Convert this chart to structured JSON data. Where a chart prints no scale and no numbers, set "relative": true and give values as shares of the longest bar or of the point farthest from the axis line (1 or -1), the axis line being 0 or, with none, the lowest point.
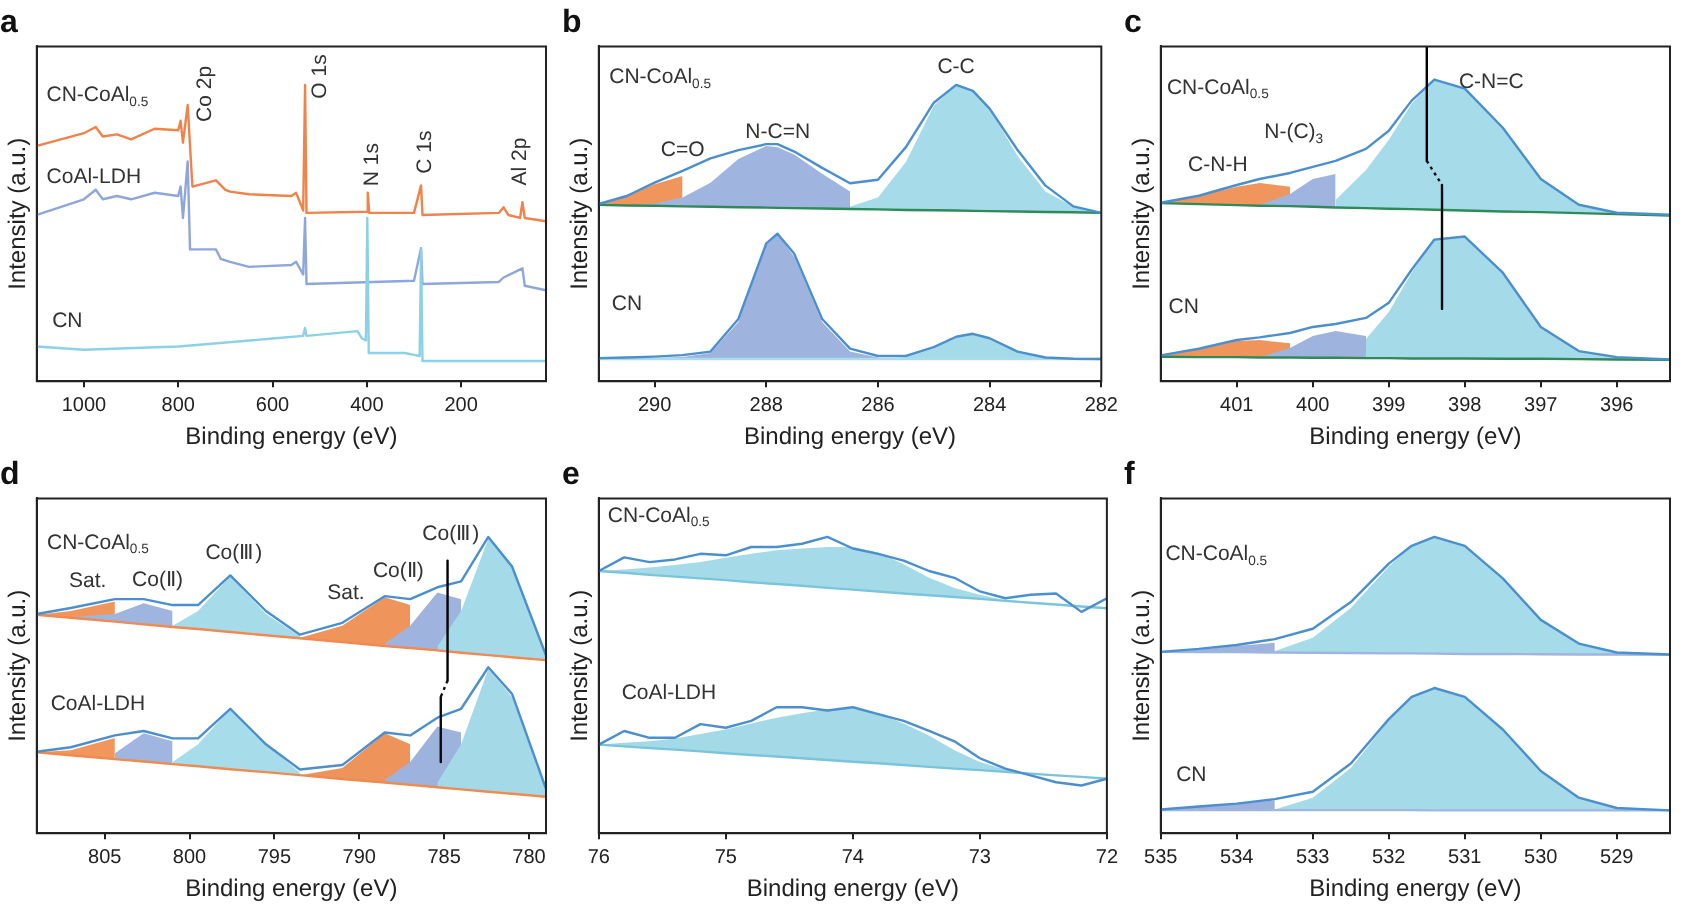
{
  "chart_data": [
    {
      "type": "line",
      "title": "a",
      "xlabel": "Binding energy (eV)",
      "ylabel": "Intensity (a.u.)",
      "relative": true,
      "xlim": [
        1100,
        20
      ],
      "xticks": [
        1000,
        800,
        600,
        400,
        200
      ],
      "annotations": [
        "CN-CoAl$_{0.5}$",
        "CoAl-LDH",
        "CN",
        "Co 2p",
        "O 1s",
        "N 1s",
        "C 1s",
        "Al 2p"
      ],
      "series": [
        {
          "color": "#f0834a",
          "x": [
            1100,
            1000,
            975,
            960,
            930,
            900,
            850,
            800,
            795,
            790,
            780,
            770,
            720,
            700,
            690,
            650,
            560,
            550,
            535,
            531,
            528,
            400,
            398,
            395,
            300,
            285,
            282,
            120,
            110,
            100,
            75,
            70,
            65,
            20
          ],
          "values": [
            0.794,
            0.837,
            0.858,
            0.826,
            0.833,
            0.816,
            0.852,
            0.847,
            0.879,
            0.805,
            0.932,
            0.657,
            0.678,
            0.646,
            0.64,
            0.631,
            0.625,
            0.636,
            0.576,
            1,
            0.568,
            0.572,
            0.636,
            0.568,
            0.568,
            0.661,
            0.561,
            0.568,
            0.587,
            0.561,
            0.551,
            0.604,
            0.551,
            0.54
          ]
        },
        {
          "color": "#8ea7db",
          "x": [
            1100,
            1000,
            975,
            960,
            930,
            900,
            850,
            800,
            795,
            790,
            780,
            775,
            720,
            710,
            690,
            650,
            560,
            550,
            535,
            531,
            528,
            300,
            285,
            282,
            120,
            110,
            70,
            65,
            20
          ],
          "values": [
            0.561,
            0.614,
            0.646,
            0.614,
            0.625,
            0.614,
            0.636,
            0.625,
            0.657,
            0.551,
            0.742,
            0.445,
            0.445,
            0.413,
            0.403,
            0.386,
            0.392,
            0.403,
            0.36,
            0.551,
            0.328,
            0.339,
            0.449,
            0.328,
            0.335,
            0.35,
            0.381,
            0.322,
            0.307
          ]
        },
        {
          "color": "#8cd2e6",
          "x": [
            1100,
            1000,
            800,
            600,
            535,
            531,
            528,
            420,
            410,
            402,
            399,
            396,
            320,
            300,
            288,
            285,
            282,
            20
          ],
          "values": [
            0.117,
            0.106,
            0.117,
            0.144,
            0.153,
            0.18,
            0.153,
            0.169,
            0.144,
            0.138,
            0.551,
            0.095,
            0.095,
            0.089,
            0.085,
            0.445,
            0.068,
            0.068
          ]
        }
      ]
    },
    {
      "type": "line",
      "title": "b",
      "xlabel": "Binding energy (eV)",
      "ylabel": "Intensity (a.u.)",
      "relative": true,
      "xlim": [
        291,
        282
      ],
      "xticks": [
        290,
        288,
        286,
        284,
        282
      ],
      "x": [
        291,
        290.5,
        290,
        289.5,
        289,
        288.5,
        288,
        287.8,
        287.5,
        287,
        286.5,
        286,
        285.5,
        285,
        284.6,
        284.3,
        284,
        283.5,
        283,
        282.5,
        282
      ],
      "annotations": [
        "CN-CoAl$_{0.5}$",
        "C=O",
        "N-C=N",
        "C-C",
        "CN"
      ],
      "series": [
        {
          "color": "#2e8b57",
          "values": [
            0.595,
            0.593,
            0.592,
            0.59,
            0.589,
            0.587,
            0.586,
            0.585,
            0.584,
            0.583,
            0.581,
            0.58,
            0.578,
            0.577,
            0.576,
            0.575,
            0.574,
            0.573,
            0.571,
            0.57,
            0.568
          ]
        },
        {
          "type": "area",
          "color": "#f0965c",
          "values": [
            0.596,
            0.625,
            0.665,
            0.693,
            null,
            null,
            null,
            null,
            null,
            null,
            null,
            null,
            null,
            null,
            null,
            null,
            null,
            null,
            null,
            null,
            null
          ]
        },
        {
          "type": "area",
          "color": "#a0b4e0",
          "values": [
            0.595,
            0.595,
            0.6,
            0.62,
            0.67,
            0.75,
            0.794,
            0.79,
            0.765,
            0.7,
            0.64,
            null,
            null,
            null,
            null,
            null,
            null,
            null,
            null,
            null,
            null
          ]
        },
        {
          "type": "area",
          "color": "#a6dcea",
          "values": [
            null,
            null,
            null,
            null,
            null,
            null,
            null,
            null,
            null,
            null,
            0.59,
            0.62,
            0.74,
            0.93,
            1.0,
            0.98,
            0.92,
            0.76,
            0.64,
            0.59,
            0.568
          ]
        },
        {
          "color": "#4a90d0",
          "values": [
            0.598,
            0.625,
            0.67,
            0.71,
            0.752,
            0.78,
            0.8,
            0.8,
            0.775,
            0.72,
            0.668,
            0.68,
            0.79,
            0.94,
            1.0,
            0.98,
            0.92,
            0.78,
            0.66,
            0.59,
            0.568
          ]
        },
        {
          "color": "#a8dde9",
          "values": [
            0.075,
            0.075,
            0.075,
            0.075,
            0.075,
            0.075,
            0.075,
            0.075,
            0.075,
            0.075,
            0.075,
            0.075,
            0.075,
            0.075,
            0.075,
            0.075,
            0.075,
            0.075,
            0.075,
            0.075,
            0.075
          ]
        },
        {
          "type": "area",
          "color": "#9fb3df",
          "values": [
            0.075,
            0.076,
            0.078,
            0.082,
            0.095,
            0.2,
            0.46,
            0.496,
            0.42,
            0.2,
            0.1,
            0.08,
            null,
            null,
            null,
            null,
            null,
            null,
            null,
            null,
            null
          ]
        },
        {
          "type": "area",
          "color": "#a5dbe9",
          "values": [
            null,
            null,
            null,
            null,
            null,
            null,
            null,
            null,
            null,
            null,
            null,
            0.076,
            0.08,
            0.11,
            0.15,
            0.16,
            0.145,
            0.1,
            0.08,
            0.076,
            0.075
          ]
        },
        {
          "color": "#4b8fcf",
          "values": [
            0.078,
            0.08,
            0.083,
            0.088,
            0.1,
            0.21,
            0.465,
            0.498,
            0.43,
            0.21,
            0.11,
            0.085,
            0.085,
            0.115,
            0.15,
            0.16,
            0.145,
            0.1,
            0.08,
            0.076,
            0.075
          ]
        }
      ]
    },
    {
      "type": "line",
      "title": "c",
      "xlabel": "Binding energy (eV)",
      "ylabel": "Intensity (a.u.)",
      "relative": true,
      "xlim": [
        402,
        395.3
      ],
      "xticks": [
        401,
        400,
        399,
        398,
        397,
        396
      ],
      "x": [
        402,
        401.5,
        401,
        400.7,
        400.3,
        400,
        399.7,
        399.3,
        399,
        398.7,
        398.4,
        398,
        397.5,
        397,
        396.5,
        396,
        395.3
      ],
      "annotations": [
        "CN-CoAl$_{0.5}$",
        "C-N-H",
        "N-(C)$_{3}$",
        "C-N=C",
        "CN"
      ],
      "series": [
        {
          "color": "#2e8b57",
          "values": [
            0.532,
            0.529,
            0.526,
            0.524,
            0.523,
            0.521,
            0.519,
            0.517,
            0.515,
            0.514,
            0.512,
            0.51,
            0.507,
            0.505,
            0.502,
            0.499,
            0.495
          ]
        },
        {
          "type": "area",
          "color": "#f0965c",
          "values": [
            0.533,
            0.554,
            0.581,
            0.592,
            0.581,
            null,
            null,
            null,
            null,
            null,
            null,
            null,
            null,
            null,
            null,
            null,
            null
          ]
        },
        {
          "type": "area",
          "color": "#a0b4e0",
          "values": [
            null,
            null,
            null,
            0.526,
            0.559,
            0.604,
            0.619,
            null,
            null,
            null,
            null,
            null,
            null,
            null,
            null,
            null,
            null
          ]
        },
        {
          "type": "area",
          "color": "#a6dcea",
          "values": [
            null,
            null,
            null,
            null,
            null,
            null,
            0.541,
            0.631,
            0.721,
            0.829,
            0.901,
            0.874,
            0.757,
            0.604,
            0.523,
            0.501,
            0.495
          ]
        },
        {
          "color": "#4a90d0",
          "values": [
            0.533,
            0.554,
            0.586,
            0.604,
            0.622,
            0.64,
            0.658,
            0.694,
            0.748,
            0.838,
            0.901,
            0.874,
            0.757,
            0.604,
            0.527,
            0.503,
            0.497
          ]
        },
        {
          "color": "#2f8a56",
          "values": [
            0.073,
            0.072,
            0.072,
            0.071,
            0.071,
            0.07,
            0.07,
            0.069,
            0.069,
            0.068,
            0.068,
            0.068,
            0.067,
            0.067,
            0.066,
            0.065,
            0.064
          ]
        },
        {
          "type": "area",
          "color": "#ef955b",
          "values": [
            0.075,
            0.095,
            0.12,
            0.123,
            0.113,
            null,
            null,
            null,
            null,
            null,
            null,
            null,
            null,
            null,
            null,
            null,
            null
          ]
        },
        {
          "type": "area",
          "color": "#9fb3df",
          "values": [
            null,
            null,
            null,
            0.072,
            0.099,
            0.135,
            0.15,
            0.135,
            null,
            null,
            null,
            null,
            null,
            null,
            null,
            null,
            null
          ]
        },
        {
          "type": "area",
          "color": "#a5dbe9",
          "values": [
            null,
            null,
            null,
            null,
            null,
            null,
            null,
            0.126,
            0.207,
            0.324,
            0.423,
            0.432,
            0.324,
            0.162,
            0.09,
            0.07,
            0.064
          ]
        },
        {
          "color": "#4b8fcf",
          "values": [
            0.077,
            0.097,
            0.123,
            0.131,
            0.144,
            0.162,
            0.171,
            0.189,
            0.234,
            0.333,
            0.423,
            0.432,
            0.324,
            0.162,
            0.09,
            0.072,
            0.065
          ]
        },
        {
          "color": "#000000",
          "x": [
            398.5,
            398.5
          ],
          "values": [
            1.0,
            0.658
          ]
        },
        {
          "color": "#111111",
          "line_style": "dotted",
          "x": [
            398.5,
            398.3
          ],
          "values": [
            0.658,
            0.586
          ]
        },
        {
          "color": "#0a0a0a",
          "x": [
            398.3,
            398.3
          ],
          "values": [
            0.586,
            0.216
          ]
        }
      ]
    },
    {
      "type": "line",
      "title": "d",
      "xlabel": "Binding energy (eV)",
      "ylabel": "Intensity (a.u.)",
      "relative": true,
      "xlim": [
        809,
        779
      ],
      "xticks": [
        805,
        800,
        795,
        790,
        785,
        780
      ],
      "x": [
        809,
        807,
        804.4,
        802.7,
        801,
        799.5,
        797.6,
        795.5,
        793.5,
        791,
        788.5,
        787,
        785.4,
        784,
        782.4,
        781,
        779
      ],
      "annotations": [
        "CN-CoAl$_{0.5}$",
        "Sat.",
        "Co(Ⅱ)",
        "Co(Ⅲ)",
        "Sat.",
        "Co(Ⅱ)",
        "Co(Ⅲ)",
        "CoAl-LDH"
      ],
      "series": [
        {
          "color": "#f08a50",
          "values": [
            0.737,
            0.727,
            0.714,
            0.705,
            0.696,
            0.689,
            0.679,
            0.668,
            0.658,
            0.645,
            0.632,
            0.625,
            0.617,
            0.609,
            0.601,
            0.594,
            0.584
          ]
        },
        {
          "type": "area",
          "color": "#f0965c",
          "values": [
            0.737,
            0.75,
            0.782,
            null,
            null,
            null,
            null,
            null,
            null,
            null,
            null,
            null,
            null,
            null,
            null,
            null,
            null
          ]
        },
        {
          "type": "area",
          "color": "#a0b4e0",
          "values": [
            null,
            0.73,
            0.74,
            0.776,
            0.75,
            null,
            null,
            null,
            null,
            null,
            null,
            null,
            null,
            null,
            null,
            null,
            null
          ]
        },
        {
          "type": "area",
          "color": "#a6dcea",
          "values": [
            null,
            null,
            null,
            null,
            0.7,
            0.75,
            0.867,
            0.74,
            0.665,
            null,
            null,
            null,
            null,
            null,
            null,
            null,
            null
          ]
        },
        {
          "type": "area",
          "color": "#ef955b",
          "values": [
            null,
            null,
            null,
            null,
            null,
            null,
            null,
            null,
            0.66,
            0.7,
            0.796,
            0.77,
            null,
            null,
            null,
            null,
            null
          ]
        },
        {
          "type": "area",
          "color": "#9fb3df",
          "values": [
            null,
            null,
            null,
            null,
            null,
            null,
            null,
            null,
            null,
            null,
            0.64,
            0.7,
            0.812,
            0.79,
            null,
            null,
            null
          ]
        },
        {
          "type": "area",
          "color": "#a5dbe9",
          "values": [
            null,
            null,
            null,
            null,
            null,
            null,
            null,
            null,
            null,
            null,
            null,
            null,
            0.63,
            0.75,
            0.994,
            0.9,
            0.6
          ]
        },
        {
          "color": "#4a90d0",
          "values": [
            0.74,
            0.76,
            0.79,
            0.79,
            0.77,
            0.77,
            0.87,
            0.75,
            0.67,
            0.71,
            0.8,
            0.79,
            0.83,
            0.85,
            1.0,
            0.9,
            0.6
          ]
        },
        {
          "color": "#ee8b4f",
          "values": [
            0.273,
            0.263,
            0.25,
            0.242,
            0.233,
            0.226,
            0.216,
            0.206,
            0.196,
            0.183,
            0.171,
            0.163,
            0.155,
            0.148,
            0.14,
            0.133,
            0.123
          ]
        },
        {
          "type": "area",
          "color": "#f1975d",
          "values": [
            0.273,
            0.28,
            0.321,
            null,
            null,
            null,
            null,
            null,
            null,
            null,
            null,
            null,
            null,
            null,
            null,
            null,
            null
          ]
        },
        {
          "type": "area",
          "color": "#a1b5e1",
          "values": [
            null,
            null,
            0.27,
            0.337,
            0.31,
            null,
            null,
            null,
            null,
            null,
            null,
            null,
            null,
            null,
            null,
            null,
            null
          ]
        },
        {
          "type": "area",
          "color": "#a7ddeb",
          "values": [
            null,
            null,
            null,
            null,
            0.24,
            0.3,
            0.42,
            0.3,
            0.205,
            null,
            null,
            null,
            null,
            null,
            null,
            null,
            null
          ]
        },
        {
          "type": "area",
          "color": "#ee945a",
          "values": [
            null,
            null,
            null,
            null,
            null,
            null,
            null,
            null,
            0.196,
            0.22,
            0.337,
            0.3,
            null,
            null,
            null,
            null,
            null
          ]
        },
        {
          "type": "area",
          "color": "#9eb2de",
          "values": [
            null,
            null,
            null,
            null,
            null,
            null,
            null,
            null,
            null,
            null,
            0.18,
            0.24,
            0.36,
            0.34,
            null,
            null,
            null
          ]
        },
        {
          "type": "area",
          "color": "#a4dae8",
          "values": [
            null,
            null,
            null,
            null,
            null,
            null,
            null,
            null,
            null,
            null,
            null,
            null,
            0.17,
            0.3,
            0.554,
            0.46,
            0.15
          ]
        },
        {
          "color": "#4b8fcf",
          "values": [
            0.275,
            0.29,
            0.33,
            0.345,
            0.32,
            0.32,
            0.42,
            0.3,
            0.215,
            0.23,
            0.34,
            0.33,
            0.39,
            0.42,
            0.56,
            0.47,
            0.15
          ]
        },
        {
          "color": "#000000",
          "x": [
            784.8,
            784.8
          ],
          "values": [
            0.92,
            0.515
          ]
        },
        {
          "color": "#111111",
          "line_style": "dotted",
          "x": [
            784.8,
            785.2
          ],
          "values": [
            0.515,
            0.46
          ]
        },
        {
          "color": "#0a0a0a",
          "x": [
            785.2,
            785.2
          ],
          "values": [
            0.46,
            0.24
          ]
        }
      ]
    },
    {
      "type": "line",
      "title": "e",
      "xlabel": "Binding energy (eV)",
      "ylabel": "Intensity (a.u.)",
      "relative": true,
      "xlim": [
        76,
        72
      ],
      "xticks": [
        76,
        75,
        74,
        73,
        72
      ],
      "x": [
        76,
        75.8,
        75.6,
        75.4,
        75.2,
        75,
        74.8,
        74.6,
        74.4,
        74.2,
        74,
        73.8,
        73.6,
        73.4,
        73.2,
        73,
        72.8,
        72.6,
        72.4,
        72.2,
        72
      ],
      "annotations": [
        "CN-CoAl$_{0.5}$",
        "CoAl-LDH"
      ],
      "series": [
        {
          "color": "#7cc4dc",
          "values": [
            0.885,
            0.879,
            0.872,
            0.866,
            0.86,
            0.854,
            0.847,
            0.841,
            0.835,
            0.828,
            0.822,
            0.816,
            0.809,
            0.803,
            0.797,
            0.791,
            0.784,
            0.778,
            0.772,
            0.765,
            0.759
          ]
        },
        {
          "type": "area",
          "color": "#a5dbe9",
          "values": [
            0.885,
            0.89,
            0.897,
            0.905,
            0.915,
            0.93,
            0.943,
            0.955,
            0.961,
            0.966,
            0.966,
            0.947,
            0.908,
            0.862,
            0.828,
            0.805,
            0.786,
            0.778,
            0.772,
            0.765,
            0.759
          ]
        },
        {
          "color": "#4a90d0",
          "values": [
            0.885,
            0.931,
            0.915,
            0.924,
            0.943,
            0.938,
            0.966,
            0.966,
            0.977,
            1.0,
            0.961,
            0.943,
            0.92,
            0.885,
            0.862,
            0.816,
            0.793,
            0.805,
            0.809,
            0.747,
            0.793
          ]
        },
        {
          "color": "#7bc3db",
          "values": [
            0.299,
            0.293,
            0.287,
            0.282,
            0.276,
            0.27,
            0.264,
            0.259,
            0.253,
            0.247,
            0.241,
            0.236,
            0.23,
            0.224,
            0.218,
            0.213,
            0.207,
            0.201,
            0.195,
            0.19,
            0.184
          ]
        },
        {
          "type": "area",
          "color": "#a4dae8",
          "values": [
            0.299,
            0.305,
            0.31,
            0.32,
            0.335,
            0.35,
            0.37,
            0.39,
            0.405,
            0.418,
            0.42,
            0.405,
            0.37,
            0.33,
            0.28,
            0.24,
            0.215,
            0.201,
            0.195,
            0.19,
            0.184
          ]
        },
        {
          "color": "#4b8fcf",
          "values": [
            0.299,
            0.345,
            0.322,
            0.322,
            0.368,
            0.356,
            0.379,
            0.425,
            0.425,
            0.414,
            0.425,
            0.402,
            0.379,
            0.345,
            0.31,
            0.253,
            0.218,
            0.195,
            0.172,
            0.161,
            0.184
          ]
        }
      ]
    },
    {
      "type": "line",
      "title": "f",
      "xlabel": "Binding energy (eV)",
      "ylabel": "Intensity (a.u.)",
      "relative": true,
      "xlim": [
        535,
        528.3
      ],
      "xticks": [
        535,
        534,
        533,
        532,
        531,
        530,
        529
      ],
      "x": [
        535,
        534.5,
        534,
        533.5,
        533,
        532.5,
        532,
        531.7,
        531.4,
        531,
        530.5,
        530,
        529.5,
        529,
        528.3
      ],
      "annotations": [
        "CN-CoAl$_{0.5}$",
        "CN"
      ],
      "series": [
        {
          "color": "#a0b4e0",
          "values": [
            0.612,
            0.611,
            0.611,
            0.61,
            0.609,
            0.608,
            0.607,
            0.607,
            0.606,
            0.605,
            0.605,
            0.604,
            0.603,
            0.603,
            0.602
          ]
        },
        {
          "type": "area",
          "color": "#9fb3df",
          "values": [
            0.612,
            0.62,
            0.632,
            0.643,
            null,
            null,
            null,
            null,
            null,
            null,
            null,
            null,
            null,
            null,
            null
          ]
        },
        {
          "type": "area",
          "color": "#a6dcea",
          "values": [
            null,
            null,
            null,
            0.615,
            0.66,
            0.76,
            0.9,
            0.97,
            1.0,
            0.97,
            0.86,
            0.72,
            0.64,
            0.61,
            0.603
          ]
        },
        {
          "color": "#4a90d0",
          "values": [
            0.612,
            0.622,
            0.635,
            0.655,
            0.69,
            0.78,
            0.91,
            0.97,
            1.0,
            0.97,
            0.86,
            0.72,
            0.64,
            0.61,
            0.603
          ]
        },
        {
          "color": "#a1b5e1",
          "values": [
            0.078,
            0.078,
            0.078,
            0.078,
            0.078,
            0.078,
            0.078,
            0.078,
            0.077,
            0.077,
            0.077,
            0.077,
            0.077,
            0.077,
            0.077
          ]
        },
        {
          "type": "area",
          "color": "#9eb2de",
          "values": [
            0.08,
            0.09,
            0.1,
            0.11,
            null,
            null,
            null,
            null,
            null,
            null,
            null,
            null,
            null,
            null,
            null
          ]
        },
        {
          "type": "area",
          "color": "#a5dbe9",
          "values": [
            null,
            null,
            null,
            0.08,
            0.12,
            0.22,
            0.38,
            0.46,
            0.49,
            0.46,
            0.35,
            0.21,
            0.12,
            0.085,
            0.077
          ]
        },
        {
          "color": "#4b8fcf",
          "values": [
            0.08,
            0.09,
            0.1,
            0.115,
            0.14,
            0.235,
            0.385,
            0.46,
            0.49,
            0.46,
            0.35,
            0.21,
            0.12,
            0.085,
            0.077
          ]
        }
      ]
    }
  ]
}
